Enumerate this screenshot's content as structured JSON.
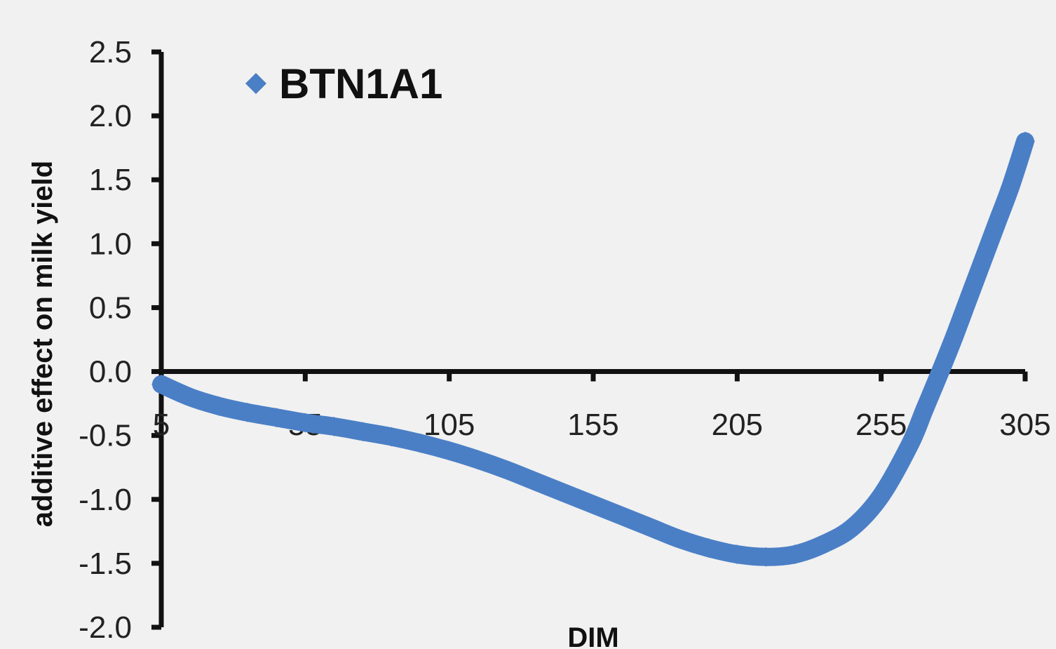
{
  "chart_data": {
    "type": "scatter",
    "xlabel": "DIM",
    "ylabel": "additive effect on milk yield",
    "xlim": [
      5,
      305
    ],
    "ylim": [
      -2.0,
      2.5
    ],
    "x_ticks": [
      "5",
      "55",
      "105",
      "155",
      "205",
      "255",
      "305"
    ],
    "y_ticks": [
      "2.5",
      "2.0",
      "1.5",
      "1.0",
      "0.5",
      "0.0",
      "-0.5",
      "-1.0",
      "-1.5",
      "-2.0"
    ],
    "legend_position": "top-left",
    "grid": false,
    "series": [
      {
        "name": "BTN1A1",
        "color": "#4a7fc6",
        "marker": "diamond",
        "x": [
          5,
          15,
          25,
          35,
          45,
          55,
          65,
          75,
          85,
          95,
          105,
          115,
          125,
          135,
          145,
          155,
          165,
          175,
          185,
          195,
          205,
          215,
          225,
          235,
          245,
          255,
          265,
          270,
          275,
          280,
          285,
          290,
          295,
          300,
          305
        ],
        "y": [
          -0.1,
          -0.2,
          -0.27,
          -0.32,
          -0.36,
          -0.4,
          -0.43,
          -0.47,
          -0.51,
          -0.56,
          -0.62,
          -0.69,
          -0.77,
          -0.86,
          -0.95,
          -1.04,
          -1.13,
          -1.22,
          -1.31,
          -1.38,
          -1.43,
          -1.45,
          -1.43,
          -1.35,
          -1.22,
          -0.97,
          -0.57,
          -0.3,
          -0.03,
          0.25,
          0.55,
          0.85,
          1.15,
          1.45,
          1.8
        ]
      }
    ]
  }
}
